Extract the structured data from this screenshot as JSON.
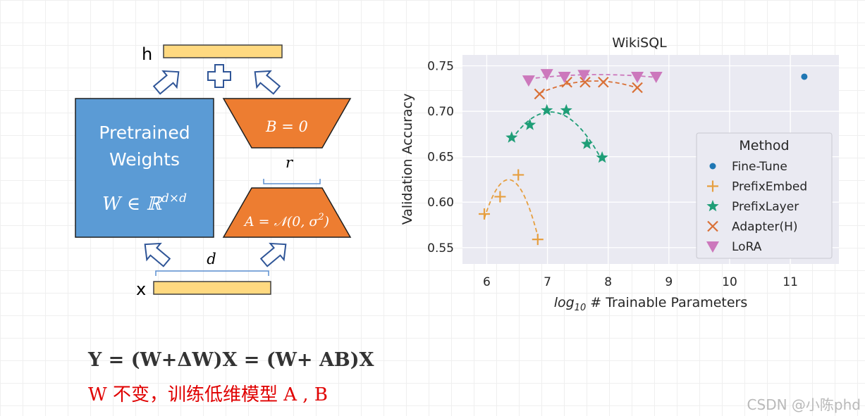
{
  "diagram": {
    "h_label": "h",
    "x_label": "x",
    "pretrained_line1": "Pretrained",
    "pretrained_line2": "Weights",
    "pretrained_formula": "W ∈ ℝ",
    "pretrained_formula_sup": "d×d",
    "matrix_b": "B = 0",
    "matrix_a_prefix": "A = 𝒩(0, σ",
    "matrix_a_sup": "2",
    "matrix_a_suffix": ")",
    "rank_label": "r",
    "dim_label": "d",
    "plus_symbol": "+",
    "colors": {
      "pretrained": "#5b9bd5",
      "lora_matrix": "#ed7d31",
      "vector": "#ffd980",
      "arrow": "#2f5597"
    }
  },
  "chart_data": {
    "type": "scatter",
    "title": "WikiSQL",
    "xlabel_prefix": "log",
    "xlabel_sub": "10",
    "xlabel_suffix": " # Trainable Parameters",
    "ylabel": "Validation Accuracy",
    "xlim": [
      5.6,
      11.8
    ],
    "ylim": [
      0.532,
      0.762
    ],
    "xticks": [
      6,
      7,
      8,
      9,
      10,
      11
    ],
    "yticks": [
      0.55,
      0.6,
      0.65,
      0.7,
      0.75
    ],
    "ytick_labels": [
      "0.55",
      "0.60",
      "0.65",
      "0.70",
      "0.75"
    ],
    "grid": true,
    "background": "#eaeaf2",
    "legend": {
      "title": "Method",
      "placement": "center-right"
    },
    "series": [
      {
        "name": "Fine-Tune",
        "marker": "dot",
        "color": "#1f77b4",
        "x": [
          11.23
        ],
        "y": [
          0.738
        ],
        "trend": false
      },
      {
        "name": "PrefixEmbed",
        "marker": "plus",
        "color": "#e69f40",
        "x": [
          5.96,
          6.22,
          6.52,
          6.84
        ],
        "y": [
          0.587,
          0.606,
          0.63,
          0.559
        ],
        "trend": true
      },
      {
        "name": "PrefixLayer",
        "marker": "star",
        "color": "#1f9e77",
        "x": [
          6.41,
          6.71,
          6.99,
          7.31,
          7.65,
          7.9
        ],
        "y": [
          0.671,
          0.685,
          0.701,
          0.701,
          0.664,
          0.649
        ],
        "trend": true
      },
      {
        "name": "Adapter(H)",
        "marker": "x",
        "color": "#d97036",
        "x": [
          6.87,
          7.32,
          7.62,
          7.92,
          8.48
        ],
        "y": [
          0.719,
          0.732,
          0.732,
          0.732,
          0.726
        ],
        "trend": true
      },
      {
        "name": "LoRA",
        "marker": "triangle-down",
        "color": "#cc78bc",
        "x": [
          6.69,
          6.99,
          7.28,
          7.6,
          8.48,
          8.79
        ],
        "y": [
          0.734,
          0.741,
          0.738,
          0.74,
          0.738,
          0.738
        ],
        "trend": true
      }
    ]
  },
  "equation": "Y = (W+ΔW)X = (W+ AB)X",
  "note": "W 不变，训练低维模型 A , B",
  "watermark": "CSDN @小陈phd"
}
